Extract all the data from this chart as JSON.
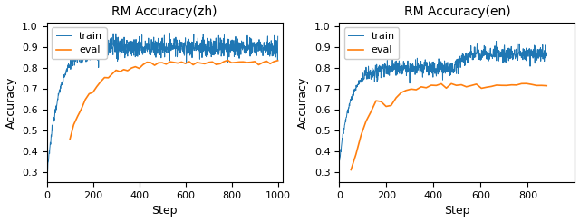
{
  "title_zh": "RM Accuracy(zh)",
  "title_en": "RM Accuracy(en)",
  "xlabel": "Step",
  "ylabel": "Accuracy",
  "train_color": "#1f77b4",
  "eval_color": "#ff7f0e",
  "zh_ylim": [
    0.25,
    1.02
  ],
  "en_ylim": [
    0.25,
    1.02
  ],
  "zh_yticks": [
    0.3,
    0.4,
    0.5,
    0.6,
    0.7,
    0.8,
    0.9,
    1.0
  ],
  "en_yticks": [
    0.3,
    0.4,
    0.5,
    0.6,
    0.7,
    0.8,
    0.9,
    1.0
  ],
  "zh_xlim": [
    0,
    1020
  ],
  "en_xlim": [
    0,
    1000
  ],
  "zh_xticks": [
    0,
    200,
    400,
    600,
    800,
    1000
  ],
  "en_xticks": [
    0,
    200,
    400,
    600,
    800
  ],
  "legend_labels": [
    "train",
    "eval"
  ]
}
